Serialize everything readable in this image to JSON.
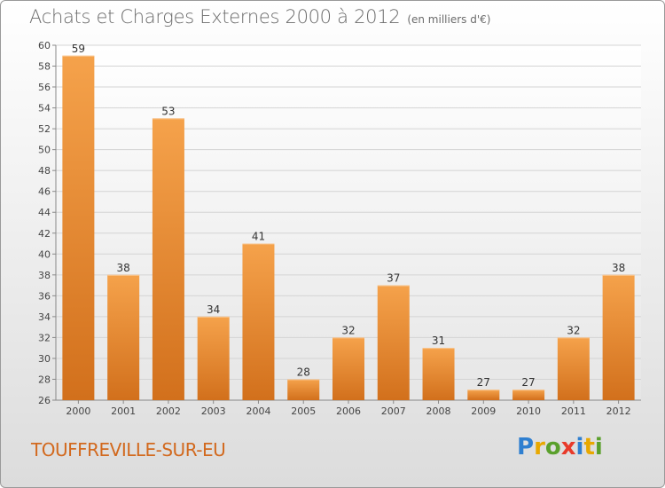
{
  "chart_data": {
    "type": "bar",
    "title": "Achats et Charges Externes 2000 à 2012",
    "subtitle": "(en milliers d'€)",
    "categories": [
      "2000",
      "2001",
      "2002",
      "2003",
      "2004",
      "2005",
      "2006",
      "2007",
      "2008",
      "2009",
      "2010",
      "2011",
      "2012"
    ],
    "values": [
      59,
      38,
      53,
      34,
      41,
      28,
      32,
      37,
      31,
      27,
      27,
      32,
      38
    ],
    "ylim": [
      26,
      60
    ],
    "yticks": [
      26,
      28,
      30,
      32,
      34,
      36,
      38,
      40,
      42,
      44,
      46,
      48,
      50,
      52,
      54,
      56,
      58,
      60
    ],
    "grid": true,
    "bar_color_top": "#f5a24b",
    "bar_color_bottom": "#d2701c"
  },
  "place_name": "TOUFFREVILLE-SUR-EU",
  "brand": {
    "letters": [
      "P",
      "r",
      "o",
      "x",
      "i",
      "t",
      "i"
    ],
    "colors": [
      "#2f7fd0",
      "#e8a800",
      "#5aa02c",
      "#e83a2a",
      "#2f7fd0",
      "#e8a800",
      "#5aa02c"
    ]
  }
}
